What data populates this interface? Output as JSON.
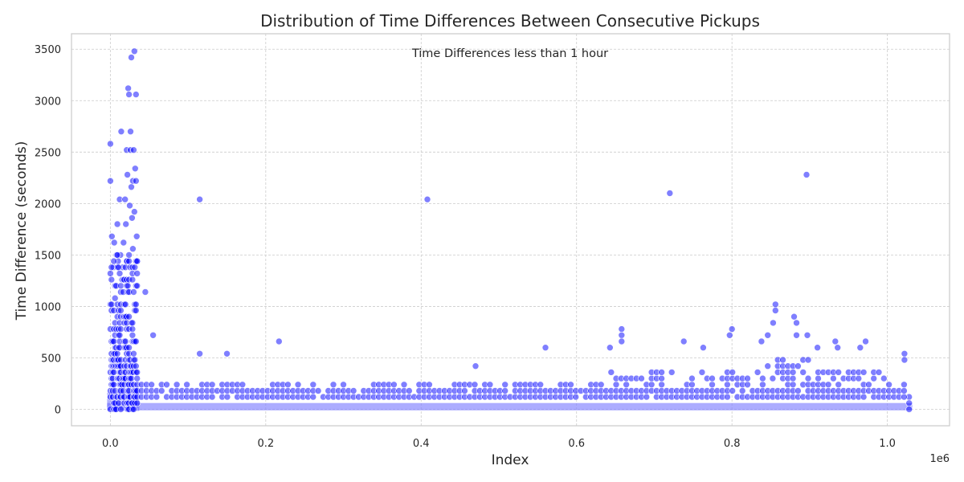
{
  "chart_data": {
    "type": "scatter",
    "title": "Distribution of Time Differences Between Consecutive Pickups",
    "annotation": "Time Differences less than 1 hour",
    "xlabel": "Index",
    "ylabel": "Time Difference (seconds)",
    "x_offset_label": "1e6",
    "x_scale_factor": 1000000,
    "xlim": [
      -50000,
      1080000
    ],
    "ylim": [
      -160,
      3650
    ],
    "x_ticks": [
      0,
      200000,
      400000,
      600000,
      800000,
      1000000
    ],
    "x_tick_labels": [
      "0.0",
      "0.2",
      "0.4",
      "0.6",
      "0.8",
      "1.0"
    ],
    "y_ticks": [
      0,
      500,
      1000,
      1500,
      2000,
      2500,
      3000,
      3500
    ],
    "y_tick_labels": [
      "0",
      "500",
      "1000",
      "1500",
      "2000",
      "2500",
      "3000",
      "3500"
    ],
    "grid": true,
    "marker_color": "#0000ff",
    "marker_alpha": 0.5,
    "series": [
      {
        "values": [
          [
            0,
            2580
          ],
          [
            0,
            2220
          ],
          [
            2000,
            1680
          ],
          [
            5000,
            1620
          ],
          [
            9000,
            1800
          ],
          [
            12000,
            2040
          ],
          [
            14000,
            2700
          ],
          [
            19000,
            2040
          ],
          [
            21000,
            2520
          ],
          [
            22000,
            2280
          ],
          [
            23000,
            3120
          ],
          [
            24000,
            3060
          ],
          [
            26000,
            2520
          ],
          [
            26000,
            2700
          ],
          [
            27000,
            3420
          ],
          [
            28000,
            1860
          ],
          [
            29000,
            2220
          ],
          [
            30000,
            2520
          ],
          [
            31000,
            3480
          ],
          [
            32000,
            2340
          ],
          [
            33000,
            3060
          ],
          [
            33000,
            2220
          ],
          [
            34000,
            1680
          ],
          [
            31000,
            1920
          ],
          [
            27000,
            2160
          ],
          [
            25000,
            1980
          ],
          [
            20000,
            1800
          ],
          [
            17000,
            1620
          ],
          [
            13000,
            1500
          ],
          [
            8000,
            1500
          ],
          [
            4000,
            1380
          ],
          [
            10000,
            1440
          ],
          [
            16000,
            1380
          ],
          [
            22000,
            1440
          ],
          [
            29000,
            1560
          ],
          [
            35000,
            1440
          ],
          [
            45000,
            1140
          ],
          [
            55000,
            720
          ],
          [
            115000,
            2040
          ],
          [
            115000,
            540
          ],
          [
            408000,
            2040
          ],
          [
            560000,
            600
          ],
          [
            720000,
            2100
          ],
          [
            896000,
            2280
          ],
          [
            150000,
            540
          ],
          [
            217000,
            660
          ],
          [
            470000,
            420
          ],
          [
            643000,
            600
          ],
          [
            658000,
            780
          ],
          [
            658000,
            720
          ],
          [
            658000,
            660
          ],
          [
            738000,
            660
          ],
          [
            763000,
            600
          ],
          [
            797000,
            720
          ],
          [
            800000,
            780
          ],
          [
            838000,
            660
          ],
          [
            846000,
            720
          ],
          [
            856000,
            1020
          ],
          [
            856000,
            960
          ],
          [
            853000,
            840
          ],
          [
            880000,
            900
          ],
          [
            883000,
            840
          ],
          [
            883000,
            720
          ],
          [
            897000,
            720
          ],
          [
            910000,
            600
          ],
          [
            933000,
            660
          ],
          [
            936000,
            600
          ],
          [
            965000,
            600
          ],
          [
            972000,
            660
          ],
          [
            1022000,
            540
          ],
          [
            1022000,
            480
          ],
          [
            1028000,
            120
          ],
          [
            1028000,
            60
          ],
          [
            1028000,
            0
          ]
        ]
      }
    ]
  }
}
